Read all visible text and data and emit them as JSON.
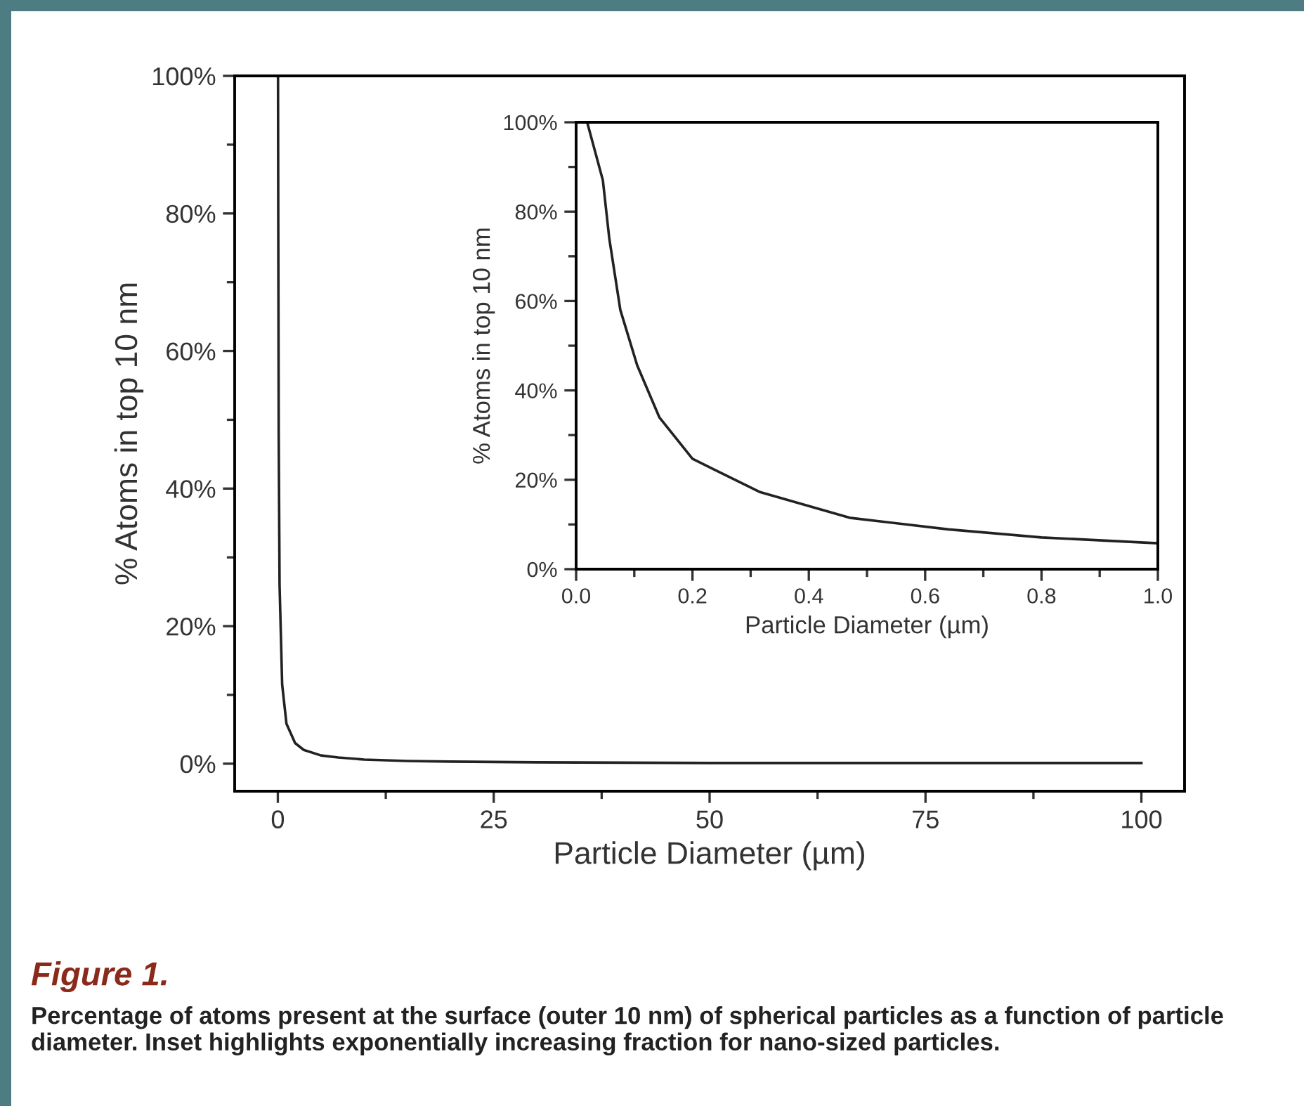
{
  "chart_data": [
    {
      "type": "line",
      "xlabel": "Particle Diameter (µm)",
      "ylabel": "% Atoms in top 10 nm",
      "xlim": [
        -5,
        105
      ],
      "ylim": [
        -4,
        100
      ],
      "xticks": [
        0,
        25,
        50,
        75,
        100
      ],
      "yticks": [
        {
          "value": 0,
          "label": "0%"
        },
        {
          "value": 20,
          "label": "20%"
        },
        {
          "value": 40,
          "label": "40%"
        },
        {
          "value": 60,
          "label": "60%"
        },
        {
          "value": 80,
          "label": "80%"
        },
        {
          "value": 100,
          "label": "100%"
        }
      ],
      "grid": false,
      "legend": false,
      "marker": "none",
      "line_style": "solid",
      "series": [
        {
          "color": "#222222",
          "x": [
            0.02,
            0.05,
            0.1,
            0.2,
            0.5,
            1,
            2,
            3,
            5,
            7,
            10,
            15,
            20,
            30,
            50,
            75,
            100
          ],
          "values": [
            100,
            78,
            48,
            26,
            11.5,
            5.8,
            3.0,
            2.0,
            1.2,
            0.9,
            0.6,
            0.4,
            0.3,
            0.2,
            0.1,
            0.1,
            0.1
          ]
        }
      ],
      "annotations": [
        "Figure 1.",
        "Percentage of atoms present at the surface (outer 10 nm) of spherical particles as a function of particle diameter. Inset highlights exponentially increasing fraction for nano-sized particles."
      ]
    },
    {
      "type": "line",
      "xlabel": "Particle Diameter (µm)",
      "ylabel": "% Atoms in top 10 nm",
      "xlim": [
        0,
        1
      ],
      "ylim": [
        0,
        100
      ],
      "xticks": [
        {
          "value": 0,
          "label": "0.0"
        },
        {
          "value": 0.2,
          "label": "0.2"
        },
        {
          "value": 0.4,
          "label": "0.4"
        },
        {
          "value": 0.6,
          "label": "0.6"
        },
        {
          "value": 0.8,
          "label": "0.8"
        },
        {
          "value": 1,
          "label": "1.0"
        }
      ],
      "yticks": [
        {
          "value": 0,
          "label": "0%"
        },
        {
          "value": 20,
          "label": "20%"
        },
        {
          "value": 40,
          "label": "40%"
        },
        {
          "value": 60,
          "label": "60%"
        },
        {
          "value": 80,
          "label": "80%"
        },
        {
          "value": 100,
          "label": "100%"
        }
      ],
      "grid": false,
      "legend": false,
      "marker": "none",
      "line_style": "solid",
      "series": [
        {
          "color": "#222222",
          "x": [
            0.019,
            0.046,
            0.057,
            0.076,
            0.105,
            0.143,
            0.2,
            0.315,
            0.47,
            0.64,
            0.8,
            1.0
          ],
          "values": [
            100,
            87,
            74,
            58,
            45.6,
            34,
            24.7,
            17.3,
            11.5,
            8.9,
            7.1,
            5.8
          ]
        }
      ]
    }
  ]
}
